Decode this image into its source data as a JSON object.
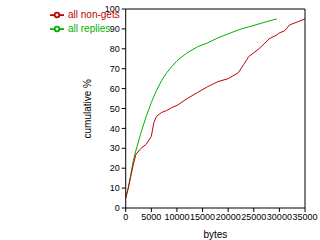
{
  "chart_data": {
    "type": "line",
    "xlabel": "bytes",
    "ylabel": "cumulative %",
    "x": [
      0,
      500,
      1000,
      1500,
      2000,
      3000,
      4000,
      5000,
      5500,
      6000,
      7000,
      8000,
      9000,
      10000,
      12000,
      14000,
      16000,
      18000,
      20000,
      22000,
      23000,
      24000,
      26000,
      28000,
      29500,
      30000,
      31000,
      32000,
      34000,
      35000
    ],
    "series": [
      {
        "name": "all replies",
        "color": "#00b000",
        "values": [
          5,
          10,
          17,
          24,
          29,
          38,
          46,
          53,
          56,
          59,
          64,
          68,
          71,
          74,
          78,
          81,
          83,
          85.5,
          87.5,
          89.5,
          90.3,
          91,
          92.5,
          94,
          95,
          null,
          null,
          null,
          null,
          null
        ]
      },
      {
        "name": "all non-gets",
        "color": "#c00000",
        "values": [
          5,
          10,
          16,
          22,
          27,
          30,
          32,
          36,
          43,
          46,
          48,
          49,
          50.5,
          51.5,
          55,
          58,
          61,
          63.5,
          65,
          68,
          72,
          76,
          80,
          85,
          87,
          88,
          89,
          92,
          94,
          95
        ]
      }
    ],
    "xlim": [
      0,
      35000
    ],
    "xticks": [
      0,
      5000,
      10000,
      15000,
      20000,
      25000,
      30000,
      35000
    ],
    "ylim": [
      0,
      100
    ],
    "yticks": [
      0,
      10,
      20,
      30,
      40,
      50,
      60,
      70,
      80,
      90,
      100
    ],
    "grid": false,
    "legend": "upper left"
  }
}
